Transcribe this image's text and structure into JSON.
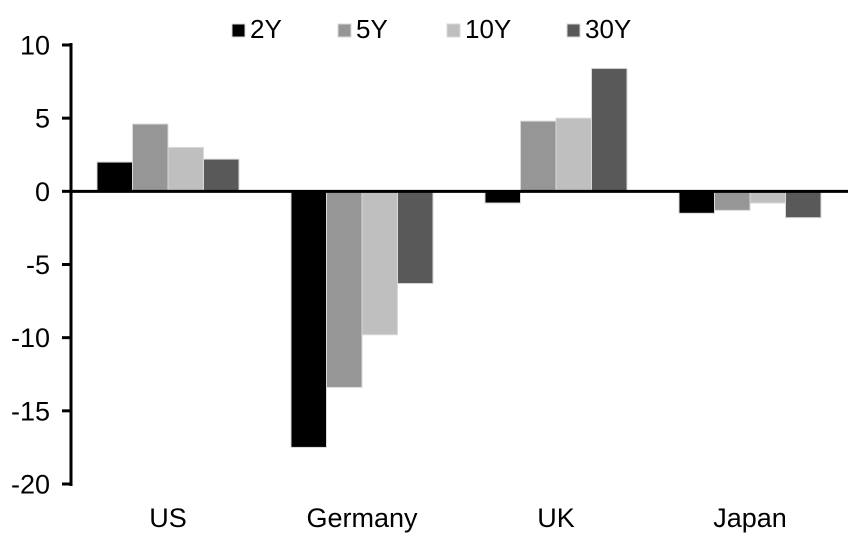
{
  "chart_data": {
    "type": "bar",
    "title": "",
    "xlabel": "",
    "ylabel": "",
    "categories": [
      "US",
      "Germany",
      "UK",
      "Japan"
    ],
    "series": [
      {
        "name": "2Y",
        "color": "#000000",
        "values": [
          2.0,
          -17.5,
          -0.8,
          -1.5
        ]
      },
      {
        "name": "5Y",
        "color": "#969696",
        "values": [
          4.6,
          -13.4,
          4.8,
          -1.3
        ]
      },
      {
        "name": "10Y",
        "color": "#bfbfbf",
        "values": [
          3.0,
          -9.8,
          5.0,
          -0.8
        ]
      },
      {
        "name": "30Y",
        "color": "#595959",
        "values": [
          2.2,
          -6.3,
          8.4,
          -1.8
        ]
      }
    ],
    "ylim": [
      -20,
      10
    ],
    "yticks": [
      10,
      5,
      0,
      -5,
      -10,
      -15,
      -20
    ],
    "grid": false,
    "legend_position": "top-center",
    "axis_color": "#000000",
    "bar_border_color": "#d9d9d9",
    "background_color": "#ffffff"
  }
}
